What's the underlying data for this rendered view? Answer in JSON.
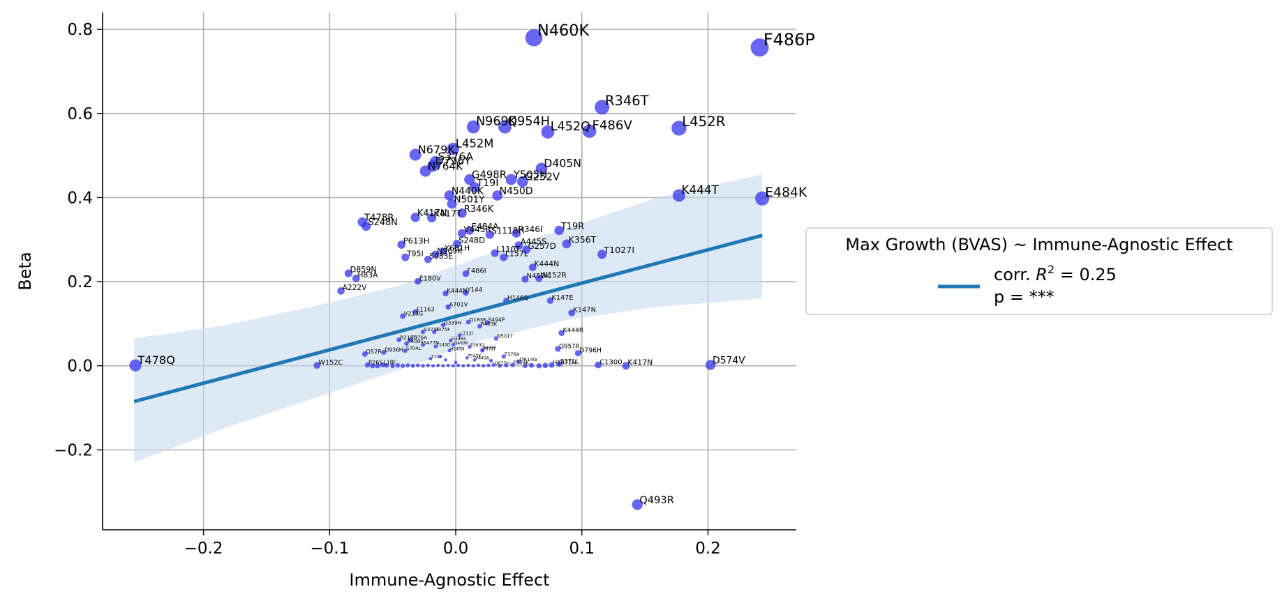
{
  "chart_data": {
    "type": "scatter",
    "title": "",
    "xlabel": "Immune-Agnostic Effect",
    "ylabel": "Beta",
    "xlim": [
      -0.28,
      0.27
    ],
    "ylim": [
      -0.39,
      0.84
    ],
    "xticks": [
      -0.2,
      -0.1,
      0.0,
      0.1,
      0.2
    ],
    "xtick_labels": [
      "−0.2",
      "−0.1",
      "0.0",
      "0.1",
      "0.2"
    ],
    "yticks": [
      -0.2,
      0.0,
      0.2,
      0.4,
      0.6,
      0.8
    ],
    "ytick_labels": [
      "−0.2",
      "0.0",
      "0.2",
      "0.4",
      "0.6",
      "0.8"
    ],
    "grid": true,
    "point_color": "#3333ee",
    "line_color": "#1f77b4",
    "band_color": "#c6dbee",
    "regression": {
      "x": [
        -0.255,
        0.243
      ],
      "y": [
        -0.085,
        0.31
      ],
      "band_upper": [
        0.065,
        0.095,
        0.14,
        0.19,
        0.26,
        0.33,
        0.4,
        0.455
      ],
      "band_lower": [
        -0.23,
        -0.15,
        -0.08,
        -0.01,
        0.06,
        0.11,
        0.14,
        0.16
      ],
      "band_x": [
        -0.255,
        -0.185,
        -0.115,
        -0.045,
        0.02,
        0.09,
        0.16,
        0.243
      ]
    },
    "legend": {
      "title": "Max Growth (BVAS) ~ Immune-Agnostic Effect",
      "line1_prefix": "corr. ",
      "line1_r": "R",
      "line1_sup": "2",
      "line1_suffix": " = 0.25",
      "line2": "p = ***",
      "placement": "center-right"
    },
    "points": [
      {
        "label": "F486P",
        "x": 0.241,
        "y": 0.757
      },
      {
        "label": "N460K",
        "x": 0.062,
        "y": 0.78
      },
      {
        "label": "R346T",
        "x": 0.116,
        "y": 0.615
      },
      {
        "label": "L452R",
        "x": 0.177,
        "y": 0.565
      },
      {
        "label": "F486V",
        "x": 0.106,
        "y": 0.558
      },
      {
        "label": "L452Q",
        "x": 0.073,
        "y": 0.556
      },
      {
        "label": "N969K",
        "x": 0.014,
        "y": 0.568
      },
      {
        "label": "Q954H",
        "x": 0.039,
        "y": 0.568
      },
      {
        "label": "L452M",
        "x": -0.002,
        "y": 0.516
      },
      {
        "label": "N679K",
        "x": -0.032,
        "y": 0.502
      },
      {
        "label": "S376A",
        "x": -0.016,
        "y": 0.485
      },
      {
        "label": "D796Y",
        "x": -0.018,
        "y": 0.475
      },
      {
        "label": "N764K",
        "x": -0.024,
        "y": 0.463
      },
      {
        "label": "D405N",
        "x": 0.068,
        "y": 0.469
      },
      {
        "label": "G498R",
        "x": 0.011,
        "y": 0.443
      },
      {
        "label": "Y505H",
        "x": 0.044,
        "y": 0.443
      },
      {
        "label": "G252V",
        "x": 0.053,
        "y": 0.438
      },
      {
        "label": "T19I",
        "x": 0.015,
        "y": 0.424
      },
      {
        "label": "K444T",
        "x": 0.177,
        "y": 0.405
      },
      {
        "label": "E484K",
        "x": 0.243,
        "y": 0.398
      },
      {
        "label": "N440K",
        "x": -0.005,
        "y": 0.405
      },
      {
        "label": "N450D",
        "x": 0.033,
        "y": 0.405
      },
      {
        "label": "N501Y",
        "x": -0.003,
        "y": 0.385
      },
      {
        "label": "R346K",
        "x": 0.005,
        "y": 0.363
      },
      {
        "label": "K417N",
        "x": -0.032,
        "y": 0.353
      },
      {
        "label": "K417T",
        "x": -0.019,
        "y": 0.352
      },
      {
        "label": "T478R",
        "x": -0.074,
        "y": 0.342
      },
      {
        "label": "S248N",
        "x": -0.071,
        "y": 0.332
      },
      {
        "label": "T19R",
        "x": 0.082,
        "y": 0.322
      },
      {
        "label": "E484A",
        "x": 0.011,
        "y": 0.322
      },
      {
        "label": "V445R",
        "x": 0.005,
        "y": 0.315
      },
      {
        "label": "R346I",
        "x": 0.048,
        "y": 0.315
      },
      {
        "label": "S1118H",
        "x": 0.027,
        "y": 0.312
      },
      {
        "label": "K356T",
        "x": 0.088,
        "y": 0.29
      },
      {
        "label": "P613H",
        "x": -0.043,
        "y": 0.288
      },
      {
        "label": "A445S",
        "x": 0.05,
        "y": 0.286
      },
      {
        "label": "G257D",
        "x": 0.056,
        "y": 0.276
      },
      {
        "label": "T1027I",
        "x": 0.116,
        "y": 0.265
      },
      {
        "label": "S248D",
        "x": 0.001,
        "y": 0.29
      },
      {
        "label": "Y681H",
        "x": -0.01,
        "y": 0.272
      },
      {
        "label": "L110T",
        "x": 0.031,
        "y": 0.268
      },
      {
        "label": "N969K",
        "x": -0.016,
        "y": 0.265
      },
      {
        "label": "T95I",
        "x": -0.04,
        "y": 0.258
      },
      {
        "label": "S983E",
        "x": -0.022,
        "y": 0.253
      },
      {
        "label": "L157L",
        "x": 0.038,
        "y": 0.258
      },
      {
        "label": "K444N",
        "x": 0.061,
        "y": 0.234
      },
      {
        "label": "D859N",
        "x": -0.085,
        "y": 0.22
      },
      {
        "label": "H83A",
        "x": -0.079,
        "y": 0.208
      },
      {
        "label": "W152R",
        "x": 0.066,
        "y": 0.208
      },
      {
        "label": "N450K",
        "x": 0.055,
        "y": 0.206
      },
      {
        "label": "E180V",
        "x": -0.03,
        "y": 0.201
      },
      {
        "label": "A222V",
        "x": -0.091,
        "y": 0.178
      },
      {
        "label": "F486I",
        "x": 0.008,
        "y": 0.219
      },
      {
        "label": "K444N",
        "x": -0.008,
        "y": 0.172
      },
      {
        "label": "Y144",
        "x": 0.008,
        "y": 0.174
      },
      {
        "label": "K147E",
        "x": 0.075,
        "y": 0.155
      },
      {
        "label": "H146Q",
        "x": 0.04,
        "y": 0.155
      },
      {
        "label": "A701V",
        "x": -0.006,
        "y": 0.14
      },
      {
        "label": "K147N",
        "x": 0.092,
        "y": 0.126
      },
      {
        "label": "V213G",
        "x": -0.042,
        "y": 0.118
      },
      {
        "label": "E1163",
        "x": -0.032,
        "y": 0.128
      },
      {
        "label": "K444R",
        "x": 0.084,
        "y": 0.078
      },
      {
        "label": "Q183E",
        "x": 0.01,
        "y": 0.104
      },
      {
        "label": "S494P",
        "x": 0.025,
        "y": 0.103
      },
      {
        "label": "R403K",
        "x": 0.019,
        "y": 0.094
      },
      {
        "label": "G339H",
        "x": -0.01,
        "y": 0.097
      },
      {
        "label": "S371F",
        "x": -0.026,
        "y": 0.081
      },
      {
        "label": "S375F",
        "x": -0.017,
        "y": 0.081
      },
      {
        "label": "L212I",
        "x": 0.003,
        "y": 0.072
      },
      {
        "label": "N501T",
        "x": 0.032,
        "y": 0.065
      },
      {
        "label": "R215G",
        "x": -0.045,
        "y": 0.062
      },
      {
        "label": "T376A",
        "x": -0.036,
        "y": 0.062
      },
      {
        "label": "G446S",
        "x": -0.004,
        "y": 0.06
      },
      {
        "label": "Q493K",
        "x": -0.002,
        "y": 0.05
      },
      {
        "label": "R408S",
        "x": -0.039,
        "y": 0.053
      },
      {
        "label": "S477N",
        "x": -0.026,
        "y": 0.05
      },
      {
        "label": "Y145D",
        "x": -0.016,
        "y": 0.046
      },
      {
        "label": "E583D",
        "x": 0.011,
        "y": 0.045
      },
      {
        "label": "Q957R",
        "x": 0.081,
        "y": 0.04
      },
      {
        "label": "S939F",
        "x": 0.021,
        "y": 0.038
      },
      {
        "label": "H245N",
        "x": -0.005,
        "y": 0.036
      },
      {
        "label": "T572I",
        "x": 0.021,
        "y": 0.036
      },
      {
        "label": "D796H",
        "x": 0.097,
        "y": 0.03
      },
      {
        "label": "S704L",
        "x": -0.04,
        "y": 0.036
      },
      {
        "label": "Q52R",
        "x": -0.072,
        "y": 0.028
      },
      {
        "label": "D936H",
        "x": -0.057,
        "y": 0.032
      },
      {
        "label": "T376A",
        "x": 0.038,
        "y": 0.022
      },
      {
        "label": "T547K",
        "x": 0.009,
        "y": 0.019
      },
      {
        "label": "V445A",
        "x": 0.015,
        "y": 0.014
      },
      {
        "label": "T19I",
        "x": -0.02,
        "y": 0.017
      },
      {
        "label": "D614G",
        "x": 0.05,
        "y": 0.01
      },
      {
        "label": "W152C",
        "x": -0.11,
        "y": 0.001
      },
      {
        "label": "T478Q",
        "x": -0.254,
        "y": 0.001
      },
      {
        "label": "D574V",
        "x": 0.202,
        "y": 0.002
      },
      {
        "label": "K417N",
        "x": 0.135,
        "y": 0.0
      },
      {
        "label": "C1300",
        "x": 0.113,
        "y": 0.002
      },
      {
        "label": "S371L",
        "x": 0.082,
        "y": 0.004
      },
      {
        "label": "H1071H",
        "x": 0.076,
        "y": 0.002
      },
      {
        "label": "P26S",
        "x": -0.07,
        "y": 0.002
      },
      {
        "label": "L18F",
        "x": -0.058,
        "y": 0.002
      },
      {
        "label": "Q677H",
        "x": 0.03,
        "y": 0.002
      },
      {
        "label": "E554K",
        "x": 0.045,
        "y": 0.002
      },
      {
        "label": "Q493R",
        "x": 0.144,
        "y": -0.33
      },
      {
        "label": "",
        "x": -0.066,
        "y": 0.0
      },
      {
        "label": "",
        "x": -0.062,
        "y": 0.0
      },
      {
        "label": "",
        "x": -0.055,
        "y": 0.001
      },
      {
        "label": "",
        "x": -0.05,
        "y": 0.0
      },
      {
        "label": "",
        "x": -0.046,
        "y": 0.001
      },
      {
        "label": "",
        "x": -0.042,
        "y": 0.0
      },
      {
        "label": "",
        "x": -0.038,
        "y": 0.001
      },
      {
        "label": "",
        "x": -0.034,
        "y": 0.0
      },
      {
        "label": "",
        "x": -0.03,
        "y": 0.001
      },
      {
        "label": "",
        "x": -0.026,
        "y": 0.0
      },
      {
        "label": "",
        "x": -0.022,
        "y": 0.001
      },
      {
        "label": "",
        "x": -0.018,
        "y": 0.0
      },
      {
        "label": "",
        "x": -0.014,
        "y": 0.001
      },
      {
        "label": "",
        "x": -0.01,
        "y": 0.0
      },
      {
        "label": "",
        "x": -0.006,
        "y": 0.001
      },
      {
        "label": "",
        "x": -0.002,
        "y": 0.0
      },
      {
        "label": "",
        "x": 0.002,
        "y": 0.001
      },
      {
        "label": "",
        "x": 0.006,
        "y": 0.0
      },
      {
        "label": "",
        "x": 0.01,
        "y": 0.001
      },
      {
        "label": "",
        "x": 0.014,
        "y": 0.0
      },
      {
        "label": "",
        "x": 0.018,
        "y": 0.001
      },
      {
        "label": "",
        "x": 0.022,
        "y": 0.0
      },
      {
        "label": "",
        "x": 0.026,
        "y": 0.001
      },
      {
        "label": "",
        "x": 0.035,
        "y": 0.0
      },
      {
        "label": "",
        "x": 0.04,
        "y": 0.001
      },
      {
        "label": "",
        "x": 0.055,
        "y": 0.0
      },
      {
        "label": "",
        "x": 0.06,
        "y": 0.001
      },
      {
        "label": "",
        "x": 0.066,
        "y": 0.0
      },
      {
        "label": "",
        "x": 0.071,
        "y": 0.001
      },
      {
        "label": "",
        "x": -0.008,
        "y": 0.014
      },
      {
        "label": "",
        "x": 0.0,
        "y": 0.008
      },
      {
        "label": "",
        "x": -0.012,
        "y": 0.022
      },
      {
        "label": "",
        "x": 0.028,
        "y": 0.012
      }
    ]
  }
}
